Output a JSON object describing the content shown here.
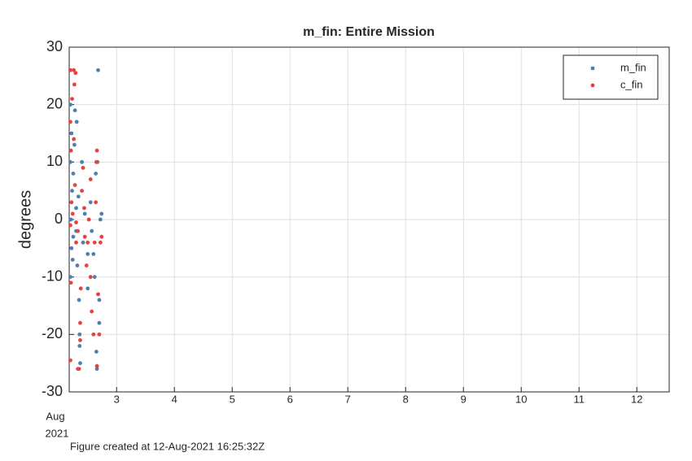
{
  "chart_data": {
    "type": "scatter",
    "title": "m_fin: Entire Mission",
    "y_label": "degrees",
    "x_date_label": [
      "Aug",
      "2021"
    ],
    "footnote": "Figure created at 12-Aug-2021 16:25:32Z",
    "xlim": [
      2.18,
      12.56
    ],
    "xticks": [
      3,
      4,
      5,
      6,
      7,
      8,
      9,
      10,
      11,
      12
    ],
    "ylim": [
      -30,
      30
    ],
    "yticks": [
      -30,
      -20,
      -10,
      0,
      10,
      20,
      30
    ],
    "grid": true,
    "legend": "top-right",
    "series": [
      {
        "name": "m_fin",
        "color": "#4f7fb0",
        "x": [
          2.2,
          2.2,
          2.22,
          2.2,
          2.23,
          2.21,
          2.22,
          2.2,
          2.25,
          2.27,
          2.28,
          2.3,
          2.3,
          2.32,
          2.35,
          2.36,
          2.37,
          2.34,
          2.4,
          2.42,
          2.45,
          2.5,
          2.5,
          2.55,
          2.57,
          2.6,
          2.62,
          2.65,
          2.66,
          2.67,
          2.68,
          2.7,
          2.72,
          2.74,
          2.7,
          2.64,
          2.36,
          2.25,
          2.24,
          2.31
        ],
        "values": [
          26,
          20,
          15,
          10,
          5,
          0,
          -5,
          -10,
          -3,
          13,
          19,
          2,
          -2,
          -8,
          -14,
          -20,
          -25,
          4,
          10,
          -4,
          1,
          -6,
          -12,
          3,
          -2,
          -6,
          -10,
          -23,
          -26,
          10,
          26,
          -18,
          0,
          1,
          -14,
          8,
          -22,
          8,
          -7,
          17
        ]
      },
      {
        "name": "c_fin",
        "color": "#e8413e",
        "x": [
          2.2,
          2.23,
          2.2,
          2.21,
          2.22,
          2.2,
          2.21,
          2.2,
          2.26,
          2.27,
          2.29,
          2.26,
          2.28,
          2.3,
          2.33,
          2.35,
          2.33,
          2.37,
          2.37,
          2.38,
          2.4,
          2.42,
          2.44,
          2.45,
          2.48,
          2.5,
          2.52,
          2.55,
          2.55,
          2.57,
          2.6,
          2.62,
          2.64,
          2.65,
          2.66,
          2.66,
          2.68,
          2.7,
          2.72,
          2.74,
          2.3,
          2.24
        ],
        "values": [
          26,
          21,
          17,
          12,
          3,
          -1,
          -11,
          -24.5,
          26,
          23.5,
          25.5,
          14,
          6,
          -4,
          -2,
          -26,
          -26,
          -21,
          -18,
          -12,
          5,
          9,
          2,
          -3,
          -8,
          -4,
          0,
          7,
          -10,
          -16,
          -20,
          -4,
          3,
          10,
          12,
          -25.5,
          -13,
          -20,
          -4,
          -3,
          -0.5,
          1
        ]
      }
    ]
  }
}
